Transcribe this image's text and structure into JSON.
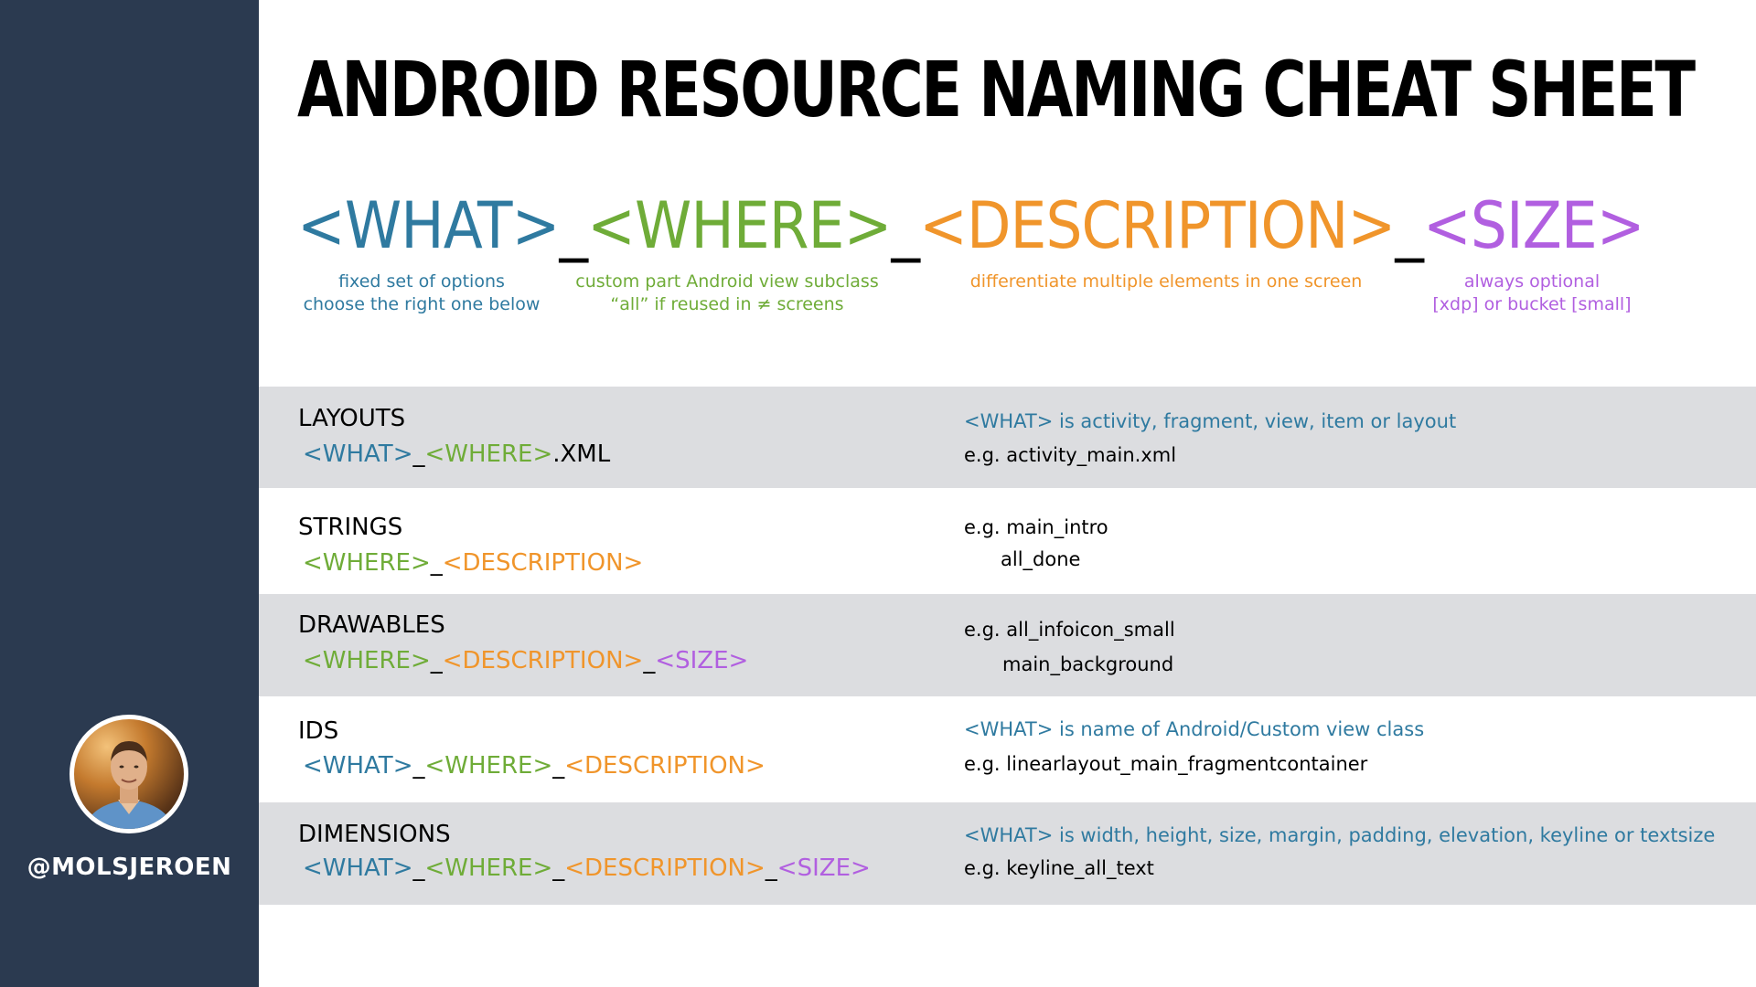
{
  "sidebar": {
    "handle": "@MOLSJEROEN",
    "avatar_icon": "person-photo"
  },
  "title": "ANDROID RESOURCE NAMING CHEAT SHEET",
  "formula": {
    "what": "<WHAT>",
    "sep1": "_",
    "where": "<WHERE>",
    "sep2": "_",
    "description": "<DESCRIPTION>",
    "sep3": "_",
    "size": "<SIZE>"
  },
  "captions": {
    "what": [
      "fixed set of options",
      "choose the right one below"
    ],
    "where": [
      "custom part Android view subclass",
      "“all” if reused in ≠ screens"
    ],
    "description": [
      "differentiate multiple elements in one screen"
    ],
    "size": [
      "always optional",
      "[xdp] or bucket [small]"
    ]
  },
  "colors": {
    "what": "#2f7aa0",
    "where": "#6fac38",
    "description": "#f0952b",
    "size": "#b15fe0",
    "sidebar": "#2b3a50",
    "row_grey": "#dcdde0"
  },
  "rows": {
    "layouts": {
      "title": "LAYOUTS",
      "pattern": {
        "what": "<WHAT>",
        "sep1": "_",
        "where": "<WHERE>",
        "ext": ".XML"
      },
      "note": "<WHAT> is activity, fragment, view, item or layout",
      "example": "e.g. activity_main.xml"
    },
    "strings": {
      "title": "STRINGS",
      "pattern": {
        "where": "<WHERE>",
        "sep1": "_",
        "description": "<DESCRIPTION>"
      },
      "example": "e.g. main_intro",
      "example2": "all_done"
    },
    "drawables": {
      "title": "DRAWABLES",
      "pattern": {
        "where": "<WHERE>",
        "sep1": "_",
        "description": "<DESCRIPTION>",
        "sep2": "_",
        "size": "<SIZE>"
      },
      "example": "e.g. all_infoicon_small",
      "example2": "main_background"
    },
    "ids": {
      "title": "IDS",
      "pattern": {
        "what": "<WHAT>",
        "sep1": "_",
        "where": "<WHERE>",
        "sep2": "_",
        "description": "<DESCRIPTION>"
      },
      "note": "<WHAT> is name of Android/Custom view class",
      "example": "e.g. linearlayout_main_fragmentcontainer"
    },
    "dimensions": {
      "title": "DIMENSIONS",
      "pattern": {
        "what": "<WHAT>",
        "sep1": "_",
        "where": "<WHERE>",
        "sep2": "_",
        "description": "<DESCRIPTION>",
        "sep3": "_",
        "size": "<SIZE>"
      },
      "note": "<WHAT> is width, height, size, margin, padding, elevation, keyline or textsize",
      "example": "e.g. keyline_all_text"
    }
  }
}
